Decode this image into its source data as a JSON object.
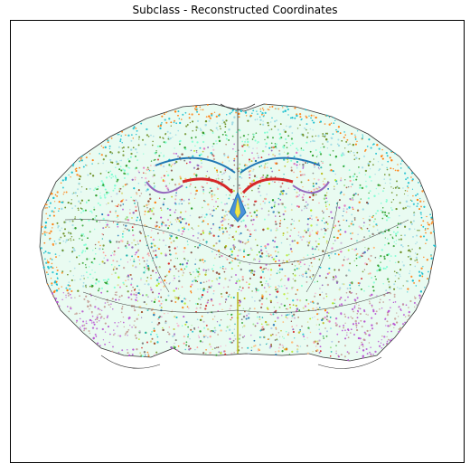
{
  "figure": {
    "title": "Subclass - Reconstructed Coordinates"
  },
  "palette": [
    "#ff7f0e",
    "#ffbb78",
    "#98df8a",
    "#2ca02c",
    "#17becf",
    "#9edae5",
    "#7fffd4",
    "#1f77b4",
    "#aec7e8",
    "#9467bd",
    "#c5b0d5",
    "#8c564b",
    "#c49c94",
    "#e377c2",
    "#f7b6d2",
    "#bcbd22",
    "#dbdb8d",
    "#d62728",
    "#ff9896",
    "#7f7f7f",
    "#b5e61d",
    "#a0522d",
    "#20b2aa",
    "#ba55d3",
    "#6b8e23"
  ]
}
